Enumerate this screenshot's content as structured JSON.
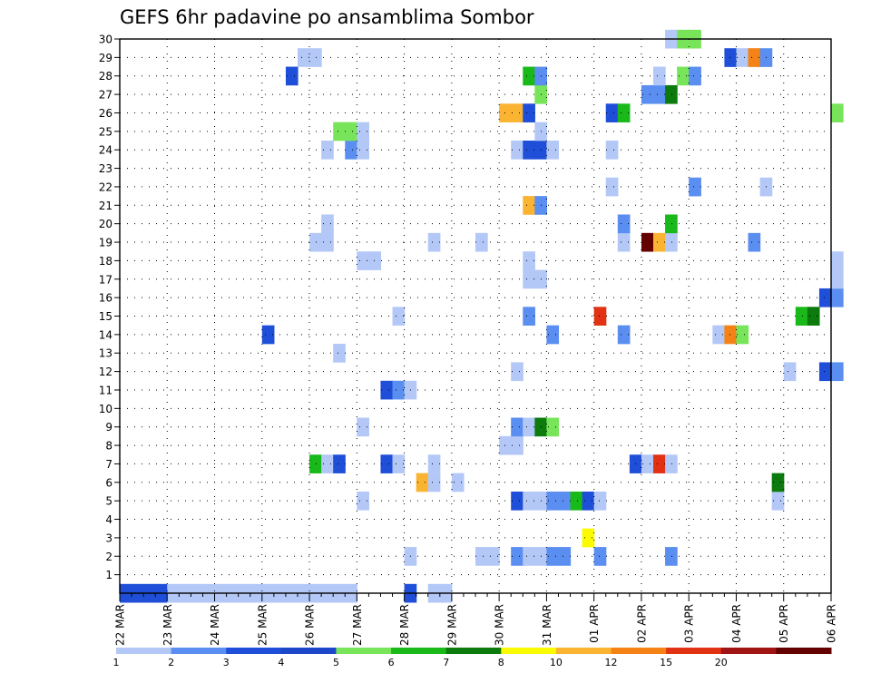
{
  "chart_data": {
    "type": "heatmap",
    "title": "GEFS 6hr padavine po ansamblima Sombor",
    "x_tick_labels": [
      "22 MAR",
      "23 MAR",
      "24 MAR",
      "25 MAR",
      "26 MAR",
      "27 MAR",
      "28 MAR",
      "29 MAR",
      "30 MAR",
      "31 MAR",
      "01 APR",
      "02 APR",
      "03 APR",
      "04 APR",
      "05 APR",
      "06 APR"
    ],
    "y_tick_labels": [
      "1",
      "2",
      "3",
      "4",
      "5",
      "6",
      "7",
      "8",
      "9",
      "10",
      "11",
      "12",
      "13",
      "14",
      "15",
      "16",
      "17",
      "18",
      "19",
      "20",
      "21",
      "22",
      "23",
      "24",
      "25",
      "26",
      "27",
      "28",
      "29",
      "30"
    ],
    "xlim_days": [
      0,
      15
    ],
    "ylim_members": [
      0,
      30
    ],
    "grid": true,
    "legend_placement": "bottom colorbar",
    "colorbar": {
      "labels": [
        "1",
        "2",
        "3",
        "4",
        "5",
        "6",
        "7",
        "8",
        "10",
        "12",
        "15",
        "20"
      ],
      "colors": [
        "#b4c8f7",
        "#5a8ef0",
        "#1f4fd8",
        "#1e46c8",
        "#78e45a",
        "#19b919",
        "#0c7a0c",
        "#fafa00",
        "#fab432",
        "#f58214",
        "#e13214",
        "#a01414",
        "#640000"
      ],
      "bin_colors": {
        "1": "#b4c8f7",
        "2": "#5a8ef0",
        "3": "#1f4fd8",
        "5": "#78e45a",
        "6": "#19b919",
        "7": "#0c7a0c",
        "8": "#fafa00",
        "10": "#fab432",
        "12": "#f58214",
        "15": "#e13214",
        "20": "#a01414",
        "25": "#640000"
      }
    },
    "cells": [
      {
        "m": 0,
        "t": 0,
        "b": 3
      },
      {
        "m": 0,
        "t": 1,
        "b": 3
      },
      {
        "m": 0,
        "t": 2,
        "b": 3
      },
      {
        "m": 0,
        "t": 3,
        "b": 3
      },
      {
        "m": 0,
        "t": 4,
        "b": 1
      },
      {
        "m": 0,
        "t": 5,
        "b": 1
      },
      {
        "m": 0,
        "t": 6,
        "b": 1
      },
      {
        "m": 0,
        "t": 7,
        "b": 1
      },
      {
        "m": 0,
        "t": 8,
        "b": 1
      },
      {
        "m": 0,
        "t": 9,
        "b": 1
      },
      {
        "m": 0,
        "t": 10,
        "b": 1
      },
      {
        "m": 0,
        "t": 11,
        "b": 1
      },
      {
        "m": 0,
        "t": 12,
        "b": 1
      },
      {
        "m": 0,
        "t": 13,
        "b": 1
      },
      {
        "m": 0,
        "t": 14,
        "b": 1
      },
      {
        "m": 0,
        "t": 15,
        "b": 1
      },
      {
        "m": 0,
        "t": 16,
        "b": 1
      },
      {
        "m": 0,
        "t": 17,
        "b": 1
      },
      {
        "m": 0,
        "t": 18,
        "b": 1
      },
      {
        "m": 0,
        "t": 19,
        "b": 1
      },
      {
        "m": 0,
        "t": 24,
        "b": 3
      },
      {
        "m": 0,
        "t": 26,
        "b": 1
      },
      {
        "m": 0,
        "t": 27,
        "b": 1
      },
      {
        "m": 2,
        "t": 24,
        "b": 1
      },
      {
        "m": 2,
        "t": 30,
        "b": 1
      },
      {
        "m": 2,
        "t": 31,
        "b": 1
      },
      {
        "m": 2,
        "t": 33,
        "b": 2
      },
      {
        "m": 2,
        "t": 34,
        "b": 1
      },
      {
        "m": 2,
        "t": 35,
        "b": 1
      },
      {
        "m": 2,
        "t": 36,
        "b": 2
      },
      {
        "m": 2,
        "t": 37,
        "b": 2
      },
      {
        "m": 2,
        "t": 40,
        "b": 2
      },
      {
        "m": 2,
        "t": 46,
        "b": 2
      },
      {
        "m": 3,
        "t": 39,
        "b": 8
      },
      {
        "m": 5,
        "t": 20,
        "b": 1
      },
      {
        "m": 5,
        "t": 33,
        "b": 3
      },
      {
        "m": 5,
        "t": 34,
        "b": 1
      },
      {
        "m": 5,
        "t": 35,
        "b": 1
      },
      {
        "m": 5,
        "t": 36,
        "b": 2
      },
      {
        "m": 5,
        "t": 37,
        "b": 2
      },
      {
        "m": 5,
        "t": 38,
        "b": 6
      },
      {
        "m": 5,
        "t": 39,
        "b": 3
      },
      {
        "m": 5,
        "t": 40,
        "b": 1
      },
      {
        "m": 5,
        "t": 55,
        "b": 1
      },
      {
        "m": 6,
        "t": 25,
        "b": 10
      },
      {
        "m": 6,
        "t": 26,
        "b": 1
      },
      {
        "m": 6,
        "t": 28,
        "b": 1
      },
      {
        "m": 6,
        "t": 55,
        "b": 7
      },
      {
        "m": 7,
        "t": 16,
        "b": 6
      },
      {
        "m": 7,
        "t": 17,
        "b": 1
      },
      {
        "m": 7,
        "t": 18,
        "b": 3
      },
      {
        "m": 7,
        "t": 22,
        "b": 3
      },
      {
        "m": 7,
        "t": 23,
        "b": 1
      },
      {
        "m": 7,
        "t": 26,
        "b": 1
      },
      {
        "m": 7,
        "t": 43,
        "b": 3
      },
      {
        "m": 7,
        "t": 44,
        "b": 1
      },
      {
        "m": 7,
        "t": 45,
        "b": 15
      },
      {
        "m": 7,
        "t": 46,
        "b": 1
      },
      {
        "m": 8,
        "t": 32,
        "b": 1
      },
      {
        "m": 8,
        "t": 33,
        "b": 1
      },
      {
        "m": 9,
        "t": 20,
        "b": 1
      },
      {
        "m": 9,
        "t": 33,
        "b": 2
      },
      {
        "m": 9,
        "t": 34,
        "b": 1
      },
      {
        "m": 9,
        "t": 35,
        "b": 7
      },
      {
        "m": 9,
        "t": 36,
        "b": 5
      },
      {
        "m": 11,
        "t": 22,
        "b": 3
      },
      {
        "m": 11,
        "t": 23,
        "b": 2
      },
      {
        "m": 11,
        "t": 24,
        "b": 1
      },
      {
        "m": 12,
        "t": 33,
        "b": 1
      },
      {
        "m": 12,
        "t": 56,
        "b": 1
      },
      {
        "m": 12,
        "t": 59,
        "b": 3
      },
      {
        "m": 12,
        "t": 60,
        "b": 2
      },
      {
        "m": 13,
        "t": 18,
        "b": 1
      },
      {
        "m": 14,
        "t": 12,
        "b": 3
      },
      {
        "m": 14,
        "t": 36,
        "b": 2
      },
      {
        "m": 14,
        "t": 42,
        "b": 2
      },
      {
        "m": 14,
        "t": 50,
        "b": 1
      },
      {
        "m": 14,
        "t": 51,
        "b": 12
      },
      {
        "m": 14,
        "t": 52,
        "b": 5
      },
      {
        "m": 15,
        "t": 23,
        "b": 1
      },
      {
        "m": 15,
        "t": 34,
        "b": 2
      },
      {
        "m": 15,
        "t": 40,
        "b": 15
      },
      {
        "m": 15,
        "t": 57,
        "b": 6
      },
      {
        "m": 15,
        "t": 58,
        "b": 7
      },
      {
        "m": 16,
        "t": 59,
        "b": 3
      },
      {
        "m": 16,
        "t": 60,
        "b": 2
      },
      {
        "m": 17,
        "t": 34,
        "b": 1
      },
      {
        "m": 17,
        "t": 35,
        "b": 1
      },
      {
        "m": 17,
        "t": 60,
        "b": 1
      },
      {
        "m": 18,
        "t": 20,
        "b": 1
      },
      {
        "m": 18,
        "t": 21,
        "b": 1
      },
      {
        "m": 18,
        "t": 34,
        "b": 1
      },
      {
        "m": 18,
        "t": 60,
        "b": 1
      },
      {
        "m": 19,
        "t": 16,
        "b": 1
      },
      {
        "m": 19,
        "t": 17,
        "b": 1
      },
      {
        "m": 19,
        "t": 26,
        "b": 1
      },
      {
        "m": 19,
        "t": 30,
        "b": 1
      },
      {
        "m": 19,
        "t": 42,
        "b": 1
      },
      {
        "m": 19,
        "t": 44,
        "b": 25
      },
      {
        "m": 19,
        "t": 45,
        "b": 10
      },
      {
        "m": 19,
        "t": 46,
        "b": 1
      },
      {
        "m": 19,
        "t": 53,
        "b": 2
      },
      {
        "m": 20,
        "t": 17,
        "b": 1
      },
      {
        "m": 20,
        "t": 42,
        "b": 2
      },
      {
        "m": 20,
        "t": 46,
        "b": 6
      },
      {
        "m": 21,
        "t": 34,
        "b": 10
      },
      {
        "m": 21,
        "t": 35,
        "b": 2
      },
      {
        "m": 22,
        "t": 41,
        "b": 1
      },
      {
        "m": 22,
        "t": 48,
        "b": 2
      },
      {
        "m": 22,
        "t": 54,
        "b": 1
      },
      {
        "m": 24,
        "t": 17,
        "b": 1
      },
      {
        "m": 24,
        "t": 19,
        "b": 2
      },
      {
        "m": 24,
        "t": 20,
        "b": 1
      },
      {
        "m": 24,
        "t": 33,
        "b": 1
      },
      {
        "m": 24,
        "t": 34,
        "b": 3
      },
      {
        "m": 24,
        "t": 35,
        "b": 3
      },
      {
        "m": 24,
        "t": 36,
        "b": 1
      },
      {
        "m": 24,
        "t": 41,
        "b": 1
      },
      {
        "m": 25,
        "t": 18,
        "b": 5
      },
      {
        "m": 25,
        "t": 19,
        "b": 5
      },
      {
        "m": 25,
        "t": 20,
        "b": 1
      },
      {
        "m": 25,
        "t": 35,
        "b": 1
      },
      {
        "m": 26,
        "t": 32,
        "b": 10
      },
      {
        "m": 26,
        "t": 33,
        "b": 10
      },
      {
        "m": 26,
        "t": 34,
        "b": 3
      },
      {
        "m": 26,
        "t": 41,
        "b": 3
      },
      {
        "m": 26,
        "t": 42,
        "b": 6
      },
      {
        "m": 26,
        "t": 60,
        "b": 5
      },
      {
        "m": 27,
        "t": 35,
        "b": 5
      },
      {
        "m": 27,
        "t": 44,
        "b": 2
      },
      {
        "m": 27,
        "t": 45,
        "b": 2
      },
      {
        "m": 27,
        "t": 46,
        "b": 7
      },
      {
        "m": 28,
        "t": 14,
        "b": 3
      },
      {
        "m": 28,
        "t": 34,
        "b": 6
      },
      {
        "m": 28,
        "t": 35,
        "b": 2
      },
      {
        "m": 28,
        "t": 45,
        "b": 1
      },
      {
        "m": 28,
        "t": 47,
        "b": 5
      },
      {
        "m": 28,
        "t": 48,
        "b": 2
      },
      {
        "m": 29,
        "t": 15,
        "b": 1
      },
      {
        "m": 29,
        "t": 16,
        "b": 1
      },
      {
        "m": 29,
        "t": 51,
        "b": 3
      },
      {
        "m": 29,
        "t": 52,
        "b": 1
      },
      {
        "m": 29,
        "t": 53,
        "b": 12
      },
      {
        "m": 29,
        "t": 54,
        "b": 2
      },
      {
        "m": 30,
        "t": 46,
        "b": 1
      },
      {
        "m": 30,
        "t": 47,
        "b": 5
      },
      {
        "m": 30,
        "t": 48,
        "b": 5
      }
    ]
  }
}
